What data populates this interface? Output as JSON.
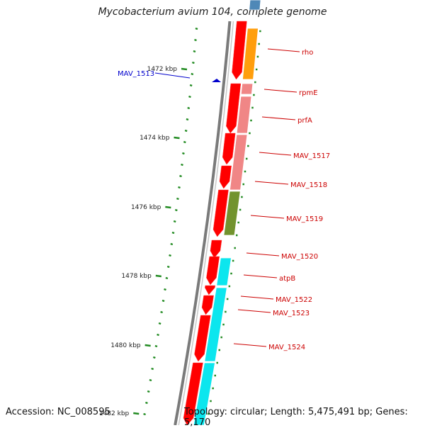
{
  "title": "Mycobacterium avium 104, complete genome",
  "footer": {
    "accession": "Accession: NC_008595",
    "topology": "Topology: circular; Length: 5,475,491 bp; Genes: 5,170"
  },
  "colors": {
    "backbone": "#8a8a8a",
    "forward_gene": "#ff0000",
    "tick": "#228b22",
    "label_line": "#cc0000",
    "label_text": "#cc0000",
    "feature_label": "#0000cc",
    "orange": "#ff9900",
    "pink": "#f08080",
    "olive": "#6b8e23",
    "cyan": "#00e5ee",
    "blue_top": "#4682b4"
  },
  "ticks": [
    {
      "label": "1472 kbp"
    },
    {
      "label": "1474 kbp"
    },
    {
      "label": "1476 kbp"
    },
    {
      "label": "1478 kbp"
    },
    {
      "label": "1480 kbp"
    },
    {
      "label": "1482 kbp"
    }
  ],
  "features": [
    {
      "label": "MAV_1513"
    }
  ],
  "genes": [
    {
      "label": "rho"
    },
    {
      "label": "rpmE"
    },
    {
      "label": "prfA"
    },
    {
      "label": "MAV_1517"
    },
    {
      "label": "MAV_1518"
    },
    {
      "label": "MAV_1519"
    },
    {
      "label": "MAV_1520"
    },
    {
      "label": "atpB"
    },
    {
      "label": "MAV_1522"
    },
    {
      "label": "MAV_1523"
    },
    {
      "label": "MAV_1524"
    }
  ]
}
